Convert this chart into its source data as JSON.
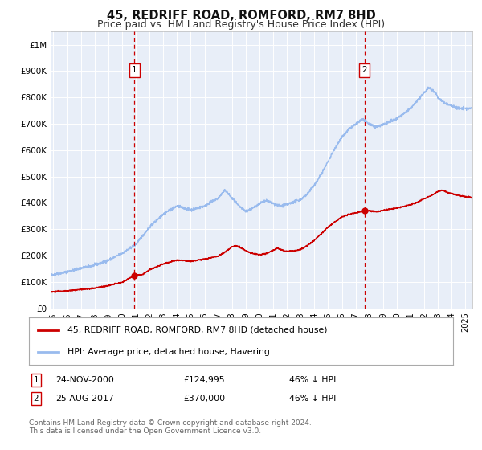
{
  "title": "45, REDRIFF ROAD, ROMFORD, RM7 8HD",
  "subtitle": "Price paid vs. HM Land Registry's House Price Index (HPI)",
  "background_color": "#ffffff",
  "plot_bg_color": "#e8eef8",
  "grid_color": "#ffffff",
  "ylabel_ticks": [
    "£0",
    "£100K",
    "£200K",
    "£300K",
    "£400K",
    "£500K",
    "£600K",
    "£700K",
    "£800K",
    "£900K",
    "£1M"
  ],
  "ytick_values": [
    0,
    100000,
    200000,
    300000,
    400000,
    500000,
    600000,
    700000,
    800000,
    900000,
    1000000
  ],
  "ylim": [
    0,
    1050000
  ],
  "xlim_start": 1994.8,
  "xlim_end": 2025.5,
  "red_line_color": "#cc0000",
  "blue_line_color": "#99bbee",
  "marker_color": "#cc0000",
  "vline_color": "#cc0000",
  "legend_label_red": "45, REDRIFF ROAD, ROMFORD, RM7 8HD (detached house)",
  "legend_label_blue": "HPI: Average price, detached house, Havering",
  "sale1_label": "1",
  "sale1_date": "24-NOV-2000",
  "sale1_price": "£124,995",
  "sale1_hpi": "46% ↓ HPI",
  "sale1_x": 2000.9,
  "sale1_y": 124995,
  "sale2_label": "2",
  "sale2_date": "25-AUG-2017",
  "sale2_price": "£370,000",
  "sale2_hpi": "46% ↓ HPI",
  "sale2_x": 2017.65,
  "sale2_y": 370000,
  "footnote": "Contains HM Land Registry data © Crown copyright and database right 2024.\nThis data is licensed under the Open Government Licence v3.0.",
  "xticks": [
    1995,
    1996,
    1997,
    1998,
    1999,
    2000,
    2001,
    2002,
    2003,
    2004,
    2005,
    2006,
    2007,
    2008,
    2009,
    2010,
    2011,
    2012,
    2013,
    2014,
    2015,
    2016,
    2017,
    2018,
    2019,
    2020,
    2021,
    2022,
    2023,
    2024,
    2025
  ]
}
